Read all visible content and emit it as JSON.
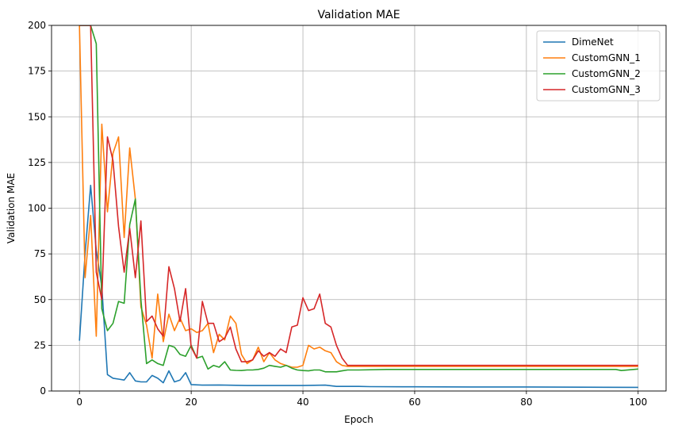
{
  "chart_data": {
    "type": "line",
    "title": "Validation MAE",
    "xlabel": "Epoch",
    "ylabel": "Validation MAE",
    "xlim": [
      -5,
      105
    ],
    "ylim": [
      0,
      200
    ],
    "xticks": [
      0,
      20,
      40,
      60,
      80,
      100
    ],
    "yticks": [
      0,
      25,
      50,
      75,
      100,
      125,
      150,
      175,
      200
    ],
    "grid": true,
    "legend_position": "top-right",
    "series": [
      {
        "name": "DimeNet",
        "color": "#1f77b4",
        "x": [
          0,
          1,
          2,
          3,
          4,
          5,
          6,
          7,
          8,
          9,
          10,
          11,
          12,
          13,
          14,
          15,
          16,
          17,
          18,
          19,
          20,
          22,
          25,
          30,
          35,
          40,
          44,
          46,
          48,
          50,
          52,
          60,
          70,
          80,
          90,
          100
        ],
        "values": [
          27.5,
          75,
          112.5,
          77,
          57,
          9,
          7,
          6.5,
          6,
          10,
          5.5,
          5,
          5,
          8.5,
          7,
          4.5,
          11,
          5,
          6,
          10,
          3.5,
          3.2,
          3.3,
          3,
          3,
          3,
          3.2,
          2.5,
          2.5,
          2.5,
          2.4,
          2.3,
          2.2,
          2.2,
          2.1,
          2
        ]
      },
      {
        "name": "CustomGNN_1",
        "color": "#ff7f0e",
        "x": [
          0,
          1,
          2,
          3,
          4,
          5,
          6,
          7,
          8,
          9,
          10,
          11,
          12,
          13,
          14,
          15,
          16,
          17,
          18,
          19,
          20,
          21,
          22,
          23,
          24,
          25,
          26,
          27,
          28,
          29,
          30,
          31,
          32,
          33,
          34,
          35,
          36,
          37,
          38,
          39,
          40,
          41,
          42,
          43,
          44,
          45,
          46,
          47,
          48,
          50,
          55,
          60,
          70,
          80,
          90,
          100
        ],
        "values": [
          200,
          62,
          96,
          30,
          146,
          98,
          130,
          139,
          84,
          133,
          105,
          46,
          36,
          18,
          53,
          27,
          42,
          33,
          40,
          33,
          34,
          32,
          33,
          37,
          21,
          31,
          28,
          41,
          37,
          20,
          15,
          17,
          24,
          16,
          21,
          17,
          15,
          14,
          13,
          13,
          14,
          25,
          23,
          24,
          22,
          21,
          16,
          14,
          13.5,
          13.5,
          13.5,
          13.5,
          13.5,
          13.5,
          13.5,
          13.5
        ]
      },
      {
        "name": "CustomGNN_2",
        "color": "#2ca02c",
        "x": [
          0,
          1,
          2,
          3,
          4,
          5,
          6,
          7,
          8,
          9,
          10,
          11,
          12,
          13,
          14,
          15,
          16,
          17,
          18,
          19,
          20,
          21,
          22,
          23,
          24,
          25,
          26,
          27,
          28,
          29,
          30,
          31,
          32,
          33,
          34,
          35,
          36,
          37,
          38,
          39,
          40,
          41,
          42,
          43,
          44,
          45,
          46,
          47,
          48,
          50,
          55,
          60,
          70,
          80,
          90,
          96,
          97,
          100
        ],
        "values": [
          200,
          200,
          200,
          190,
          45,
          33,
          37,
          49,
          48,
          91,
          105,
          50,
          15,
          17,
          15,
          14,
          25,
          24,
          20,
          19,
          25,
          18,
          19,
          12,
          14,
          13,
          16,
          11.5,
          11.3,
          11.2,
          11.5,
          11.5,
          11.8,
          12.5,
          14,
          13.5,
          13,
          14,
          12.5,
          11.5,
          11.2,
          11,
          11.5,
          11.5,
          10.5,
          10.5,
          10.5,
          11,
          11.5,
          11.5,
          11.8,
          11.8,
          11.8,
          11.8,
          11.8,
          11.8,
          11.2,
          12
        ]
      },
      {
        "name": "CustomGNN_3",
        "color": "#d62728",
        "x": [
          0,
          1,
          2,
          3,
          4,
          5,
          6,
          7,
          8,
          9,
          10,
          11,
          12,
          13,
          14,
          15,
          16,
          17,
          18,
          19,
          20,
          21,
          22,
          23,
          24,
          25,
          26,
          27,
          28,
          29,
          30,
          31,
          32,
          33,
          34,
          35,
          36,
          37,
          38,
          39,
          40,
          41,
          42,
          43,
          44,
          45,
          46,
          47,
          48,
          50,
          55,
          60,
          70,
          80,
          90,
          100
        ],
        "values": [
          200,
          200,
          200,
          65,
          50,
          139,
          126,
          90,
          65,
          89,
          62,
          93,
          38,
          41,
          34,
          30,
          68,
          56,
          38,
          56,
          24,
          18,
          49,
          37,
          37,
          27,
          29,
          35,
          23,
          16,
          16,
          17,
          22,
          19,
          21,
          19,
          23,
          21,
          35,
          36,
          51,
          44,
          45,
          53,
          37,
          35,
          25,
          18,
          14,
          14,
          14,
          14,
          14,
          14,
          14,
          14
        ]
      }
    ]
  }
}
